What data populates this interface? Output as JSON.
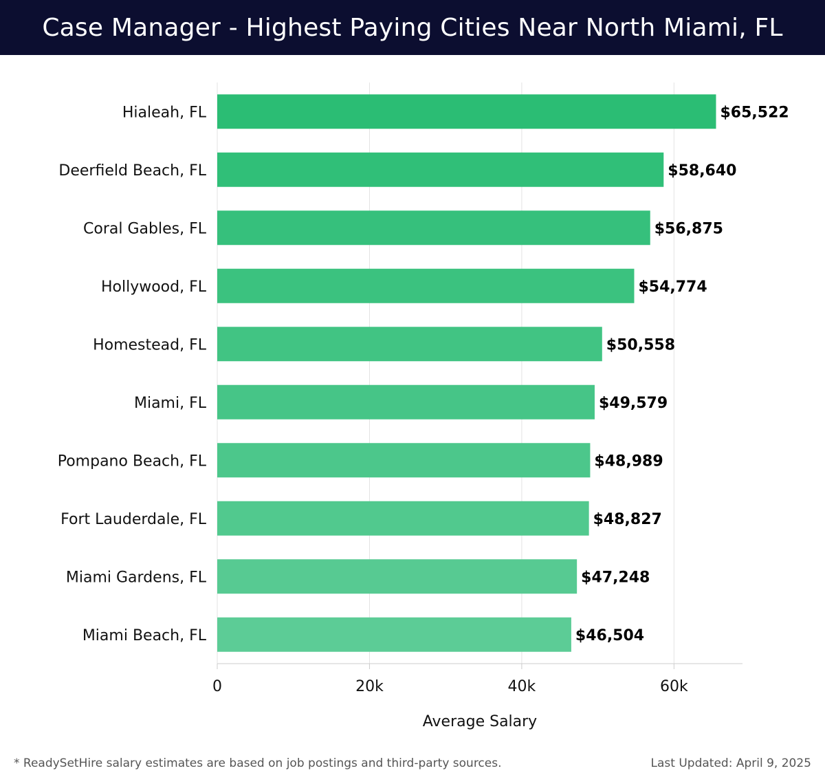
{
  "header": {
    "title": "Case Manager - Highest Paying Cities Near North Miami, FL"
  },
  "chart_data": {
    "type": "bar",
    "orientation": "horizontal",
    "categories": [
      "Hialeah, FL",
      "Deerfield Beach, FL",
      "Coral Gables, FL",
      "Hollywood, FL",
      "Homestead, FL",
      "Miami, FL",
      "Pompano Beach, FL",
      "Fort Lauderdale, FL",
      "Miami Gardens, FL",
      "Miami Beach, FL"
    ],
    "values": [
      65522,
      58640,
      56875,
      54774,
      50558,
      49579,
      48989,
      48827,
      47248,
      46504
    ],
    "value_labels": [
      "$65,522",
      "$58,640",
      "$56,875",
      "$54,774",
      "$50,558",
      "$49,579",
      "$48,989",
      "$48,827",
      "$47,248",
      "$46,504"
    ],
    "xlabel": "Average Salary",
    "ylabel": "",
    "xlim": [
      0,
      69000
    ],
    "xticks": [
      0,
      20000,
      40000,
      60000
    ],
    "xtick_labels": [
      "0",
      "20k",
      "40k",
      "60k"
    ],
    "grid": true,
    "colors": {
      "bar_top": "#2bbd74",
      "bar_bottom": "#5ccc96",
      "grid": "#e3e3e3",
      "axis": "#cccccc"
    }
  },
  "footer": {
    "note": "* ReadySetHire salary estimates are based on job postings and third-party sources.",
    "updated": "Last Updated: April 9, 2025"
  }
}
